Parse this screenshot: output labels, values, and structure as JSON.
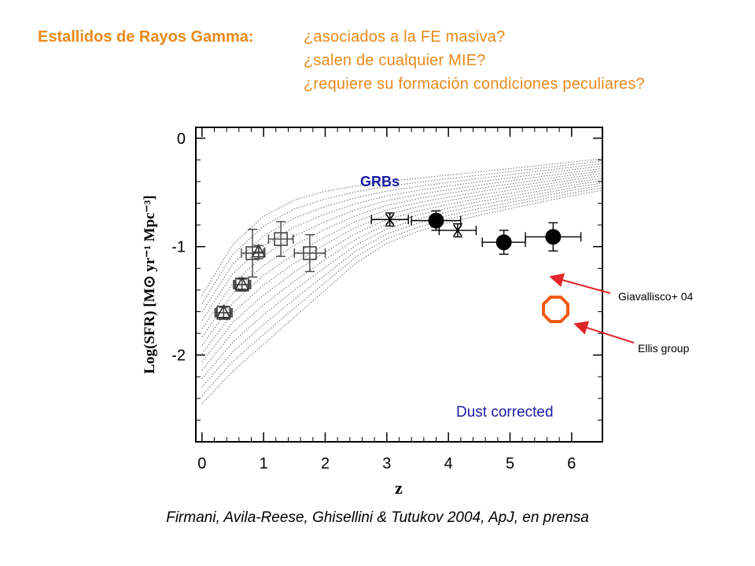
{
  "header": {
    "label": "Estallidos de Rayos Gamma:",
    "questions": [
      "¿asociados a la FE masiva?",
      "¿salen de cualquier MIE?",
      "¿requiere su formación condiciones peculiares?"
    ]
  },
  "citation": "Firmani, Avila-Reese, Ghisellini & Tutukov 2004, ApJ, en prensa",
  "colors": {
    "header": "#e8891a",
    "blue_label": "#1a1aa8",
    "arrow": "#e0242a",
    "octagon": "#f25a13"
  },
  "chart_data": {
    "type": "scatter",
    "xlabel": "z",
    "ylabel": "Log(SFR)  [M⊙ yr⁻¹ Mpc⁻³]",
    "xlim": [
      -0.1,
      6.5
    ],
    "ylim": [
      -2.8,
      0.1
    ],
    "xticks": [
      0,
      1,
      2,
      3,
      4,
      5,
      6
    ],
    "yticks": [
      0,
      -1,
      -2
    ],
    "xtick_labels": [
      "0",
      "1",
      "2",
      "3",
      "4",
      "5",
      "6"
    ],
    "ytick_labels": [
      "0",
      "-1",
      "-2"
    ],
    "band_label": "GRBs",
    "inner_label": "Dust corrected",
    "band": {
      "x": [
        0,
        0.5,
        1,
        1.5,
        2,
        2.5,
        3,
        3.5,
        4,
        4.5,
        5,
        5.5,
        6,
        6.5
      ],
      "upper": [
        -1.45,
        -0.98,
        -0.72,
        -0.57,
        -0.49,
        -0.44,
        -0.4,
        -0.37,
        -0.34,
        -0.31,
        -0.28,
        -0.25,
        -0.22,
        -0.19
      ],
      "lower": [
        -2.45,
        -2.15,
        -1.9,
        -1.65,
        -1.4,
        -1.15,
        -0.97,
        -0.86,
        -0.78,
        -0.71,
        -0.65,
        -0.59,
        -0.53,
        -0.48
      ]
    },
    "series": [
      {
        "marker": "square",
        "points": [
          {
            "x": 0.35,
            "y": -1.61,
            "xerr": 0.14,
            "yerr": 0.06
          },
          {
            "x": 0.65,
            "y": -1.35,
            "xerr": 0.14,
            "yerr": 0.06
          },
          {
            "x": 0.82,
            "y": -1.06,
            "xerr": 0.18,
            "yerr": 0.22
          },
          {
            "x": 1.28,
            "y": -0.93,
            "xerr": 0.2,
            "yerr": 0.16
          },
          {
            "x": 1.75,
            "y": -1.06,
            "xerr": 0.25,
            "yerr": 0.17
          }
        ]
      },
      {
        "marker": "triangle",
        "points": [
          {
            "x": 0.35,
            "y": -1.61,
            "xerr": 0.12,
            "yerr": 0.05
          },
          {
            "x": 0.65,
            "y": -1.35,
            "xerr": 0.12,
            "yerr": 0.05
          },
          {
            "x": 0.92,
            "y": -1.05,
            "xerr": 0.1,
            "yerr": 0.06
          }
        ]
      },
      {
        "marker": "star",
        "points": [
          {
            "x": 3.05,
            "y": -0.75,
            "xerr": 0.3,
            "yerr": 0.06
          },
          {
            "x": 4.15,
            "y": -0.85,
            "xerr": 0.3,
            "yerr": 0.06
          }
        ]
      },
      {
        "marker": "filled-circle",
        "points": [
          {
            "x": 3.8,
            "y": -0.76,
            "xerr": 0.4,
            "yerr": 0.09
          },
          {
            "x": 4.9,
            "y": -0.96,
            "xerr": 0.35,
            "yerr": 0.11
          },
          {
            "x": 5.7,
            "y": -0.91,
            "xerr": 0.45,
            "yerr": 0.13
          }
        ]
      }
    ],
    "annotations": [
      {
        "text": "Giavallisco+ 04",
        "target": "filled-circle-point"
      },
      {
        "text": "Ellis group",
        "target": "open-octagon"
      }
    ]
  }
}
